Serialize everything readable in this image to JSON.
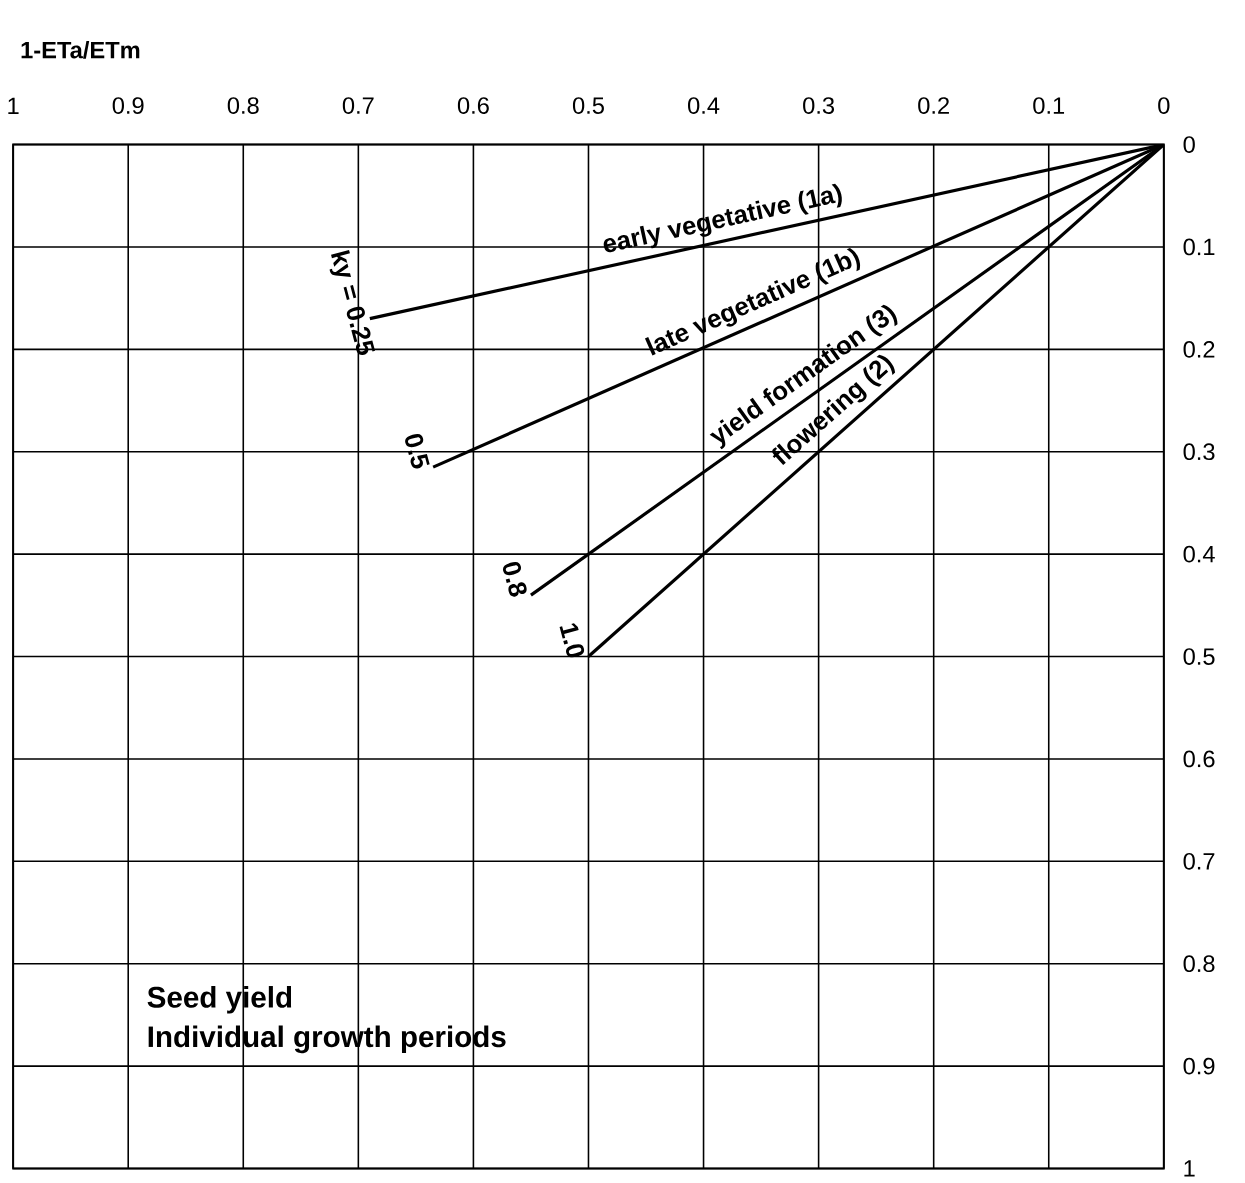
{
  "chart_data": {
    "type": "line",
    "xlabel": "1-ETa/ETm",
    "xlim": [
      1,
      0
    ],
    "ylim": [
      1,
      0
    ],
    "xticks": [
      1,
      0.9,
      0.8,
      0.7,
      0.6,
      0.5,
      0.4,
      0.3,
      0.2,
      0.1,
      0
    ],
    "yticks": [
      0,
      0.1,
      0.2,
      0.3,
      0.4,
      0.5,
      0.6,
      0.7,
      0.8,
      0.9,
      1
    ],
    "grid": true,
    "series": [
      {
        "name": "early vegetative (1a)",
        "color": "#000000",
        "x": [
          0,
          0.69
        ],
        "values": [
          0,
          0.17
        ]
      },
      {
        "name": "late vegetative (1b)",
        "color": "#000000",
        "x": [
          0,
          0.635
        ],
        "values": [
          0,
          0.315
        ]
      },
      {
        "name": "yield formation (3)",
        "color": "#000000",
        "x": [
          0,
          0.55
        ],
        "values": [
          0,
          0.44
        ]
      },
      {
        "name": "flowering (2)",
        "color": "#000000",
        "x": [
          0,
          0.5
        ],
        "values": [
          0,
          0.5
        ]
      }
    ],
    "annotations": [
      {
        "text": "ky = 0.25",
        "x": 0.69,
        "y": 0.17
      },
      {
        "text": "0.5",
        "x": 0.635,
        "y": 0.315
      },
      {
        "text": "0.8",
        "x": 0.55,
        "y": 0.44
      },
      {
        "text": "1.0",
        "x": 0.5,
        "y": 0.5
      },
      "Seed yield",
      "Individual growth periods"
    ]
  }
}
